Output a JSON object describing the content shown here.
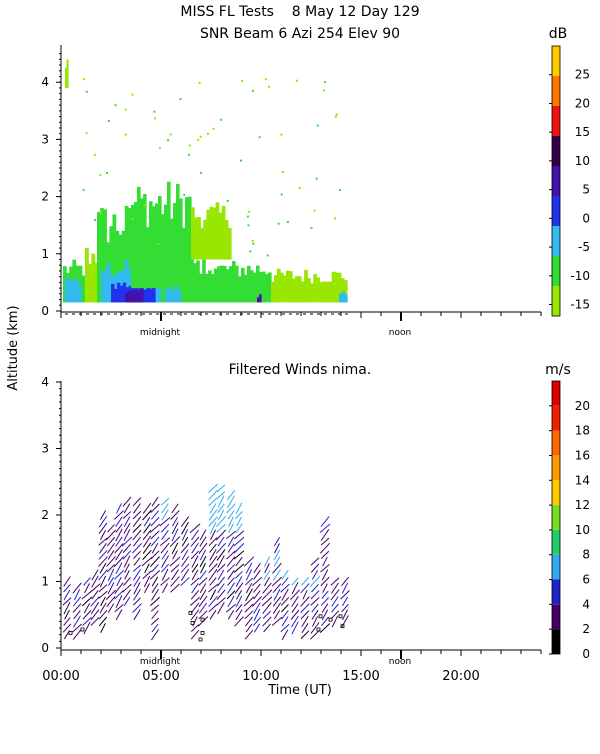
{
  "header": {
    "line1": "MISS FL Tests    8 May 12 Day 129",
    "line2": "SNR Beam 6 Azi 254 Elev 90"
  },
  "ylabel": "Altitude (km)",
  "xlabel": "Time (UT)",
  "markers": {
    "midnight": "midnight",
    "noon": "noon"
  },
  "snr_panel": {
    "unit": "dB"
  },
  "wind_panel": {
    "title": "Filtered Winds nima.",
    "unit": "m/s"
  },
  "chart_data": [
    {
      "type": "heatmap",
      "title": "SNR Beam 6 Azi 254 Elev 90",
      "ylabel": "Altitude (km)",
      "ylim": [
        0,
        4.5
      ],
      "yticks": [
        0,
        1,
        2,
        3,
        4
      ],
      "xlim": [
        0,
        24
      ],
      "colorbar": {
        "label": "dB",
        "ticks": [
          -15,
          -10,
          -5,
          0,
          5,
          10,
          15,
          20,
          25
        ],
        "range": [
          -17,
          30
        ],
        "colors": [
          "#99e600",
          "#33dd33",
          "#33bbee",
          "#2233ee",
          "#4411aa",
          "#330044",
          "#ee1111",
          "#ff7700",
          "#ffcc00"
        ]
      },
      "data_extent": {
        "time_start_ut": 0.1,
        "time_end_ut": 14.3,
        "alt_bottom_km": 0.15,
        "alt_max_km": 2.4
      },
      "blocks": [
        {
          "t0": 0.1,
          "t1": 1.2,
          "a0": 0.15,
          "a1": 0.9,
          "db": -10
        },
        {
          "t0": 0.2,
          "t1": 1.0,
          "a0": 0.15,
          "a1": 0.6,
          "db": -5
        },
        {
          "t0": 1.2,
          "t1": 2.0,
          "a0": 0.15,
          "a1": 1.2,
          "db": -12
        },
        {
          "t0": 1.8,
          "t1": 3.5,
          "a0": 0.15,
          "a1": 1.9,
          "db": -11
        },
        {
          "t0": 2.0,
          "t1": 5.0,
          "a0": 0.15,
          "a1": 0.9,
          "db": -6
        },
        {
          "t0": 2.5,
          "t1": 4.7,
          "a0": 0.15,
          "a1": 0.55,
          "db": -1
        },
        {
          "t0": 3.2,
          "t1": 4.1,
          "a0": 0.15,
          "a1": 0.45,
          "db": 4
        },
        {
          "t0": 3.5,
          "t1": 6.5,
          "a0": 0.4,
          "a1": 2.3,
          "db": -11
        },
        {
          "t0": 5.0,
          "t1": 7.5,
          "a0": 0.15,
          "a1": 1.0,
          "db": -9
        },
        {
          "t0": 5.2,
          "t1": 6.0,
          "a0": 0.15,
          "a1": 0.45,
          "db": -4
        },
        {
          "t0": 6.5,
          "t1": 8.5,
          "a0": 0.9,
          "a1": 1.9,
          "db": -12
        },
        {
          "t0": 7.5,
          "t1": 10.5,
          "a0": 0.15,
          "a1": 0.9,
          "db": -11
        },
        {
          "t0": 10.5,
          "t1": 12.0,
          "a0": 0.15,
          "a1": 0.75,
          "db": -12
        },
        {
          "t0": 12.0,
          "t1": 14.3,
          "a0": 0.15,
          "a1": 0.75,
          "db": -13
        },
        {
          "t0": 13.9,
          "t1": 14.3,
          "a0": 0.15,
          "a1": 0.35,
          "db": -2
        },
        {
          "t0": 9.8,
          "t1": 10.0,
          "a0": 0.15,
          "a1": 0.3,
          "db": 7
        },
        {
          "t0": 0.2,
          "t1": 0.35,
          "a0": 3.9,
          "a1": 4.4,
          "db": -13
        }
      ]
    },
    {
      "type": "scatter",
      "title": "Filtered Winds nima.",
      "ylabel": "Altitude (km)",
      "ylim": [
        0,
        4.1
      ],
      "yticks": [
        0,
        1,
        2,
        3,
        4
      ],
      "xlim": [
        0,
        24
      ],
      "xlabel": "Time (UT)",
      "xticks": [
        "00:00",
        "05:00",
        "10:00",
        "15:00",
        "20:00"
      ],
      "xtick_hours": [
        0,
        5,
        10,
        15,
        20
      ],
      "colorbar": {
        "label": "m/s",
        "ticks": [
          0,
          2,
          4,
          6,
          8,
          10,
          12,
          14,
          16,
          18,
          20
        ],
        "range": [
          0,
          22
        ],
        "colors": [
          "#000000",
          "#440066",
          "#2222cc",
          "#33aaee",
          "#22cc66",
          "#77dd22",
          "#ffcc00",
          "#ff9900",
          "#ff6600",
          "#ee2200",
          "#dd0000"
        ]
      },
      "data_extent": {
        "time_start_ut": 0.2,
        "time_end_ut": 14.3,
        "alt_bottom_km": 0.15,
        "alt_max_km": 2.5
      },
      "speed_classes": [
        {
          "range": [
            0,
            2
          ],
          "color": "#000000"
        },
        {
          "range": [
            2,
            4
          ],
          "color": "#440066"
        },
        {
          "range": [
            4,
            6
          ],
          "color": "#2222cc"
        },
        {
          "range": [
            6,
            8
          ],
          "color": "#33aaee"
        }
      ]
    }
  ]
}
